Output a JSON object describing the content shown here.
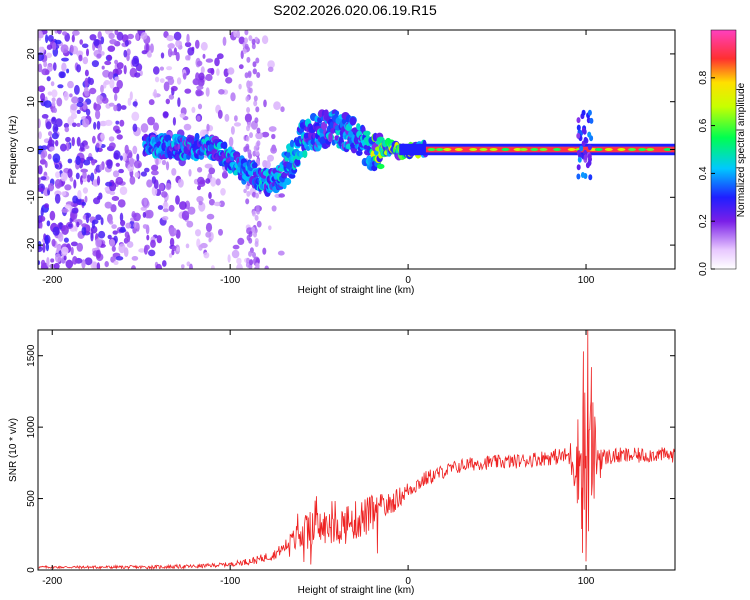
{
  "title": "S202.2026.020.06.19.R15",
  "chart_data": [
    {
      "type": "heatmap",
      "xlabel": "Height of straight line (km)",
      "ylabel": "Frequency (Hz)",
      "xlim": [
        -208,
        150
      ],
      "ylim": [
        -25,
        25
      ],
      "xticks": [
        -200,
        -100,
        0,
        100
      ],
      "yticks": [
        -20,
        -10,
        0,
        10,
        20
      ],
      "colorbar": {
        "label": "Normalized spectral amplitude",
        "range": [
          0,
          1
        ],
        "ticks": [
          0.0,
          0.2,
          0.4,
          0.6,
          0.8
        ]
      },
      "trace_path": [
        [
          -148,
          1
        ],
        [
          -135,
          0.5
        ],
        [
          -120,
          0.5
        ],
        [
          -110,
          0.5
        ],
        [
          -100,
          -2
        ],
        [
          -92,
          -4.5
        ],
        [
          -85,
          -5.5
        ],
        [
          -78,
          -7
        ],
        [
          -72,
          -6
        ],
        [
          -65,
          -2
        ],
        [
          -60,
          2
        ],
        [
          -50,
          4
        ],
        [
          -40,
          4.5
        ],
        [
          -32,
          3
        ],
        [
          -25,
          1
        ],
        [
          -20,
          -1
        ],
        [
          -12,
          0.5
        ],
        [
          -5,
          -0.3
        ],
        [
          5,
          0
        ],
        [
          150,
          0
        ]
      ],
      "strong_band": {
        "x_range": [
          10,
          150
        ],
        "frequency": 0,
        "amplitude": 0.9
      },
      "noise_region_x": [
        -208,
        -70
      ]
    },
    {
      "type": "line",
      "xlabel": "Height of straight line (km)",
      "ylabel": "SNR (10 * v/v)",
      "xlim": [
        -208,
        150
      ],
      "ylim": [
        0,
        1680
      ],
      "xticks": [
        -200,
        -100,
        0,
        100
      ],
      "yticks": [
        0,
        500,
        1000,
        1500
      ],
      "series": [
        {
          "name": "SNR",
          "color": "#ee2222",
          "envelope": {
            "x": [
              -208,
              -150,
              -120,
              -100,
              -85,
              -75,
              -65,
              -55,
              -45,
              -35,
              -20,
              -10,
              0,
              10,
              20,
              30,
              40,
              60,
              80,
              90,
              95,
              100,
              105,
              110,
              120,
              130,
              140,
              150
            ],
            "y": [
              20,
              20,
              25,
              40,
              70,
              110,
              200,
              290,
              300,
              320,
              390,
              460,
              560,
              640,
              690,
              730,
              750,
              760,
              790,
              800,
              760,
              780,
              800,
              790,
              800,
              800,
              810,
              800
            ]
          },
          "noise_amplitude": {
            "x": [
              -208,
              -100,
              -70,
              -60,
              -40,
              -20,
              -10,
              0,
              20,
              60,
              90,
              95,
              100,
              105,
              110,
              150
            ],
            "y": [
              8,
              15,
              40,
              120,
              140,
              140,
              80,
              60,
              50,
              50,
              60,
              300,
              700,
              300,
              60,
              50
            ]
          },
          "peaks": [
            {
              "x": 98.5,
              "y": 1530
            },
            {
              "x": 101,
              "y": 1680
            },
            {
              "x": 100,
              "y": 60
            },
            {
              "x": 98,
              "y": 120
            },
            {
              "x": 103,
              "y": 1420
            }
          ]
        }
      ]
    }
  ]
}
